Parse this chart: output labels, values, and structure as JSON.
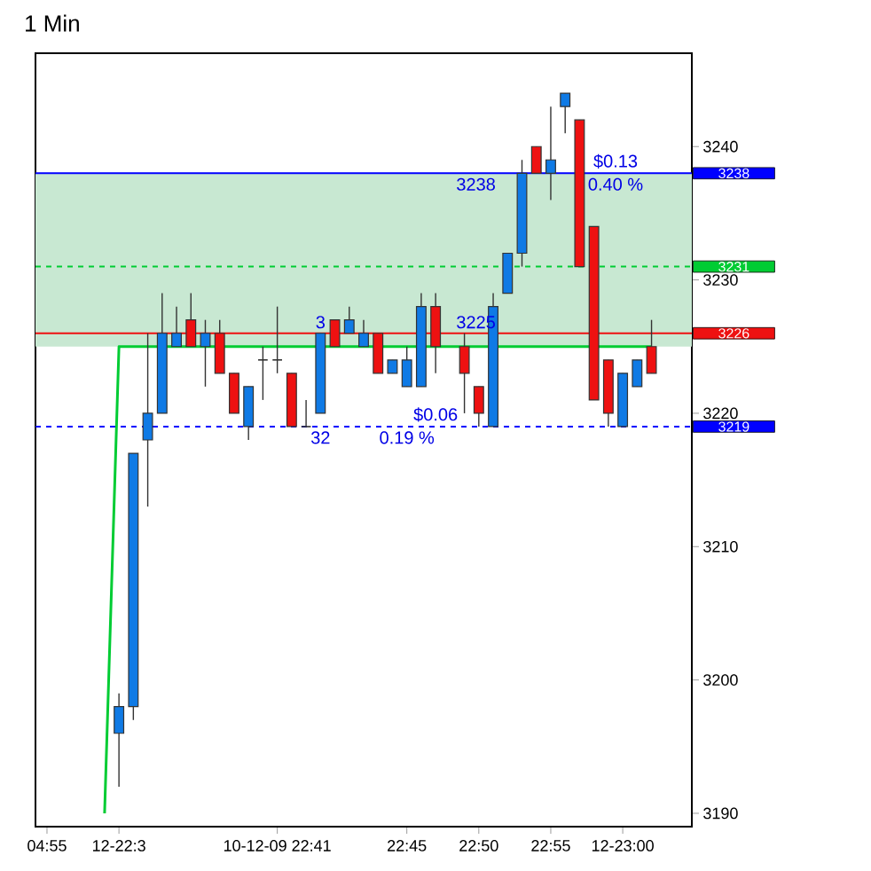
{
  "chart_data": {
    "type": "candlestick",
    "title": "1 Min",
    "categories": [
      "04:55",
      null,
      null,
      null,
      null,
      "12-22:3",
      null,
      null,
      null,
      null,
      null,
      null,
      null,
      null,
      null,
      null,
      "10-12-09 22:41",
      null,
      null,
      null,
      null,
      null,
      null,
      null,
      null,
      "22:45",
      null,
      null,
      null,
      null,
      "22:50",
      null,
      null,
      null,
      null,
      "22:55",
      null,
      null,
      null,
      null,
      "12-23:00",
      null,
      null
    ],
    "ohlc": [
      null,
      null,
      null,
      null,
      null,
      [
        3196,
        3199,
        3192,
        3198
      ],
      [
        3198,
        3217,
        3197,
        3217
      ],
      [
        3218,
        3226,
        3213,
        3220
      ],
      [
        3220,
        3229,
        3220,
        3226
      ],
      [
        3225,
        3228,
        3225,
        3226
      ],
      [
        3227,
        3229,
        3225,
        3225
      ],
      [
        3225,
        3227,
        3222,
        3226
      ],
      [
        3226,
        3227,
        3223,
        3223
      ],
      [
        3223,
        3223,
        3220,
        3220
      ],
      [
        3219,
        3222,
        3218,
        3222
      ],
      [
        3224,
        3225,
        3221,
        3224
      ],
      [
        3224,
        3228,
        3223,
        3224
      ],
      [
        3223,
        3223,
        3219,
        3219
      ],
      [
        3219,
        3221,
        3219,
        3219
      ],
      [
        3220,
        3226,
        3220,
        3226
      ],
      [
        3227,
        3227,
        3225,
        3225
      ],
      [
        3226,
        3228,
        3226,
        3227
      ],
      [
        3225,
        3227,
        3225,
        3226
      ],
      [
        3226,
        3226,
        3223,
        3223
      ],
      [
        3223,
        3224,
        3223,
        3224
      ],
      [
        3222,
        3225,
        3222,
        3224
      ],
      [
        3222,
        3229,
        3222,
        3228
      ],
      [
        3228,
        3229,
        3223,
        3225
      ],
      null,
      [
        3225,
        3226,
        3220,
        3223
      ],
      [
        3222,
        3222,
        3219,
        3220
      ],
      [
        3219,
        3229,
        3219,
        3228
      ],
      [
        3229,
        3232,
        3229,
        3232
      ],
      [
        3232,
        3239,
        3231,
        3238
      ],
      [
        3240,
        3240,
        3238,
        3238
      ],
      [
        3238,
        3243,
        3236,
        3239
      ],
      [
        3243,
        3244,
        3241,
        3244
      ],
      [
        3242,
        3242,
        3231,
        3231
      ],
      [
        3234,
        3234,
        3221,
        3221
      ],
      [
        3224,
        3224,
        3219,
        3220
      ],
      [
        3219,
        3223,
        3219,
        3223
      ],
      [
        3222,
        3224,
        3222,
        3224
      ],
      [
        3225,
        3227,
        3223,
        3223
      ]
    ],
    "colors": [
      null,
      null,
      null,
      null,
      null,
      "#0f7ae5",
      "#0f7ae5",
      "#0f7ae5",
      "#0f7ae5",
      "#0f7ae5",
      "#ee1111",
      "#0f7ae5",
      "#ee1111",
      "#ee1111",
      "#0f7ae5",
      "#333333",
      "#333333",
      "#ee1111",
      "#333333",
      "#0f7ae5",
      "#ee1111",
      "#0f7ae5",
      "#0f7ae5",
      "#ee1111",
      "#0f7ae5",
      "#0f7ae5",
      "#0f7ae5",
      "#ee1111",
      null,
      "#ee1111",
      "#ee1111",
      "#0f7ae5",
      "#0f7ae5",
      "#0f7ae5",
      "#ee1111",
      "#0f7ae5",
      "#0f7ae5",
      "#ee1111",
      "#ee1111",
      "#ee1111",
      "#0f7ae5",
      "#0f7ae5",
      "#ee1111"
    ],
    "series": [
      {
        "type": "line",
        "color": "#00cc33",
        "values": [
          null,
          null,
          null,
          null,
          3190,
          3225,
          3225,
          3225,
          3225,
          3225,
          3225,
          3225,
          3225,
          3225,
          3225,
          3225,
          3225,
          3225,
          3225,
          3225,
          3225,
          3225,
          3225,
          3225,
          3225,
          3225,
          3225,
          3225,
          3225,
          3225,
          3225,
          3225,
          3225,
          3225,
          3225,
          3225,
          3225,
          3225,
          3225,
          3225,
          3225,
          3225,
          3225
        ]
      }
    ],
    "ylim": [
      3189,
      3247
    ],
    "yticks": [
      3190,
      3200,
      3210,
      3220,
      3230,
      3240
    ],
    "ref_lines": [
      {
        "axis": "y",
        "value": 3238,
        "label": "3238",
        "color": "#0000ff"
      },
      {
        "axis": "y",
        "value": 3231,
        "label": "3231",
        "color": "#00cc33",
        "line_style": "dashed"
      },
      {
        "axis": "y",
        "value": 3226,
        "label": "3226",
        "color": "#ee1111"
      },
      {
        "axis": "y",
        "value": 3219,
        "label": "3219",
        "color": "#0000ff",
        "line_style": "dashed"
      }
    ],
    "bands": [
      {
        "axis": "y",
        "from": 3225,
        "to": 3238,
        "color": "#c8e8d2"
      }
    ],
    "annotations": [
      {
        "text": "$0.13",
        "y": 3238
      },
      {
        "text": "0.40 %",
        "y": 3238
      },
      {
        "text": "$0.06",
        "y": 3219
      },
      {
        "text": "0.19 %",
        "y": 3219
      },
      {
        "text": "3238",
        "y": 3238
      },
      {
        "text": "3225",
        "y": 3226
      },
      {
        "text": "3",
        "y": 3226
      },
      {
        "text": "32",
        "y": 3219
      }
    ]
  }
}
